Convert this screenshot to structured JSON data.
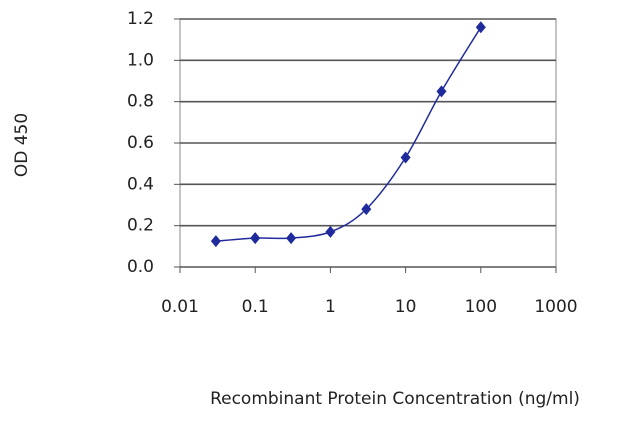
{
  "chart_data": {
    "type": "line",
    "xscale": "log",
    "x_label": "Recombinant Protein Concentration (ng/ml)",
    "y_label": "OD 450",
    "x": [
      0.03,
      0.1,
      0.3,
      1,
      3,
      10,
      30,
      100
    ],
    "series": [
      {
        "color": "#1f2a9c",
        "values": [
          0.125,
          0.14,
          0.14,
          0.17,
          0.28,
          0.53,
          0.85,
          1.16
        ]
      }
    ],
    "xlim": [
      0.01,
      1000
    ],
    "xticks": [
      0.01,
      0.1,
      1,
      10,
      100,
      1000
    ],
    "ylim": [
      0,
      1.2
    ],
    "yticks": [
      {
        "value": 0,
        "label": "0.0"
      },
      0.2,
      0.4,
      0.6,
      0.8,
      {
        "value": 1,
        "label": "1.0"
      },
      1.2
    ],
    "grid": true
  }
}
